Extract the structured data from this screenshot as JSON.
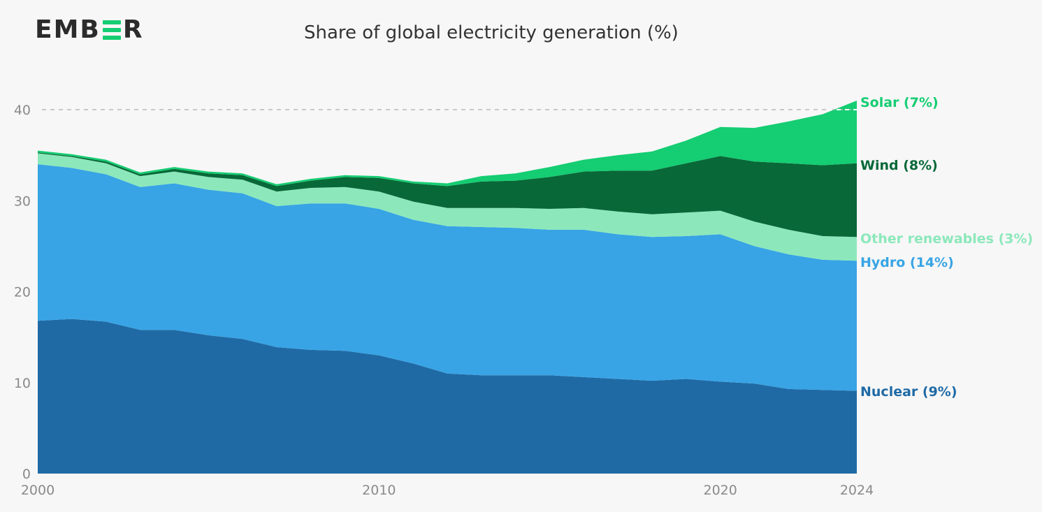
{
  "brand": {
    "logo_left": "EMB",
    "logo_right": "R",
    "accent": "#15cd72"
  },
  "chart_data": {
    "type": "area",
    "stacked": true,
    "title": "Share of global electricity generation (%)",
    "xlabel": "",
    "ylabel": "",
    "x": [
      2000,
      2001,
      2002,
      2003,
      2004,
      2005,
      2006,
      2007,
      2008,
      2009,
      2010,
      2011,
      2012,
      2013,
      2014,
      2015,
      2016,
      2017,
      2018,
      2019,
      2020,
      2021,
      2022,
      2023,
      2024
    ],
    "xlim": [
      2000,
      2024
    ],
    "ylim": [
      0,
      42
    ],
    "x_ticks": [
      2000,
      2010,
      2020,
      2024
    ],
    "y_ticks": [
      0,
      10,
      20,
      30,
      40
    ],
    "reference_line": 40,
    "grid": false,
    "legend": "inline-right",
    "series": [
      {
        "name": "Nuclear (9%)",
        "color": "#1f6aa5",
        "values": [
          16.8,
          17.0,
          16.7,
          15.8,
          15.8,
          15.2,
          14.8,
          13.9,
          13.6,
          13.5,
          13.0,
          12.1,
          11.0,
          10.8,
          10.8,
          10.8,
          10.6,
          10.4,
          10.2,
          10.4,
          10.1,
          9.9,
          9.3,
          9.2,
          9.1
        ]
      },
      {
        "name": "Hydro (14%)",
        "color": "#38a4e5",
        "values": [
          17.2,
          16.6,
          16.2,
          15.7,
          16.1,
          16.0,
          16.0,
          15.5,
          16.1,
          16.2,
          16.1,
          15.8,
          16.2,
          16.3,
          16.2,
          16.0,
          16.2,
          15.9,
          15.8,
          15.7,
          16.2,
          15.1,
          14.8,
          14.3,
          14.3
        ]
      },
      {
        "name": "Other renewables (3%)",
        "color": "#8ce8bb",
        "values": [
          1.2,
          1.2,
          1.2,
          1.2,
          1.3,
          1.4,
          1.5,
          1.6,
          1.7,
          1.8,
          1.9,
          2.0,
          2.0,
          2.1,
          2.2,
          2.3,
          2.4,
          2.5,
          2.5,
          2.6,
          2.6,
          2.7,
          2.7,
          2.6,
          2.6
        ]
      },
      {
        "name": "Wind (8%)",
        "color": "#086838",
        "values": [
          0.1,
          0.1,
          0.2,
          0.2,
          0.3,
          0.4,
          0.5,
          0.6,
          0.8,
          1.1,
          1.5,
          2.0,
          2.4,
          2.9,
          3.0,
          3.5,
          4.0,
          4.5,
          4.8,
          5.4,
          6.0,
          6.6,
          7.3,
          7.8,
          8.1
        ]
      },
      {
        "name": "Solar (7%)",
        "color": "#15cd72",
        "values": [
          0.2,
          0.2,
          0.2,
          0.2,
          0.2,
          0.2,
          0.2,
          0.2,
          0.2,
          0.2,
          0.2,
          0.2,
          0.3,
          0.6,
          0.8,
          1.1,
          1.3,
          1.7,
          2.1,
          2.5,
          3.2,
          3.7,
          4.6,
          5.6,
          6.9
        ]
      }
    ]
  }
}
